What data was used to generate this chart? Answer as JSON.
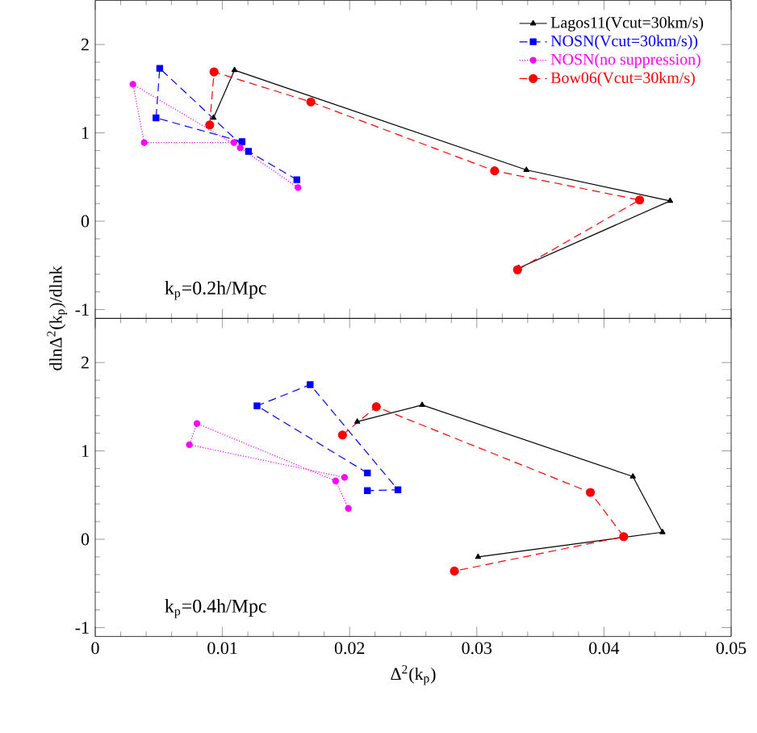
{
  "chart_data": [
    {
      "type": "line",
      "ylabel": "dlnΔ$^{2}$(k$_{p}$)/dlnk",
      "annotations": [
        "k$_{p}$=0.2h/Mpc"
      ],
      "xlim": [
        0,
        0.05
      ],
      "xticks": [
        0,
        0.01,
        0.02,
        0.03,
        0.04,
        0.05
      ],
      "ylim": [
        -1.1,
        2.5
      ],
      "yticks": [
        -1,
        0,
        1,
        2
      ],
      "tick_labels": "y",
      "legend": "top right",
      "series": [
        {
          "name": "Lagos11(Vcut=30km/s)",
          "color": "#000000",
          "marker": "triangle",
          "line_style": "solid",
          "x": [
            0.0093,
            0.01095,
            0.0339,
            0.0452,
            0.0333
          ],
          "values": [
            1.17,
            1.71,
            0.58,
            0.23,
            -0.53
          ]
        },
        {
          "name": "NOSN(Vcut=30km/s))",
          "color": "#0000ff",
          "marker": "square",
          "line_style": "dashed",
          "x": [
            0.01154,
            0.00478,
            0.00507,
            0.01205,
            0.01585
          ],
          "values": [
            0.9,
            1.17,
            1.73,
            0.79,
            0.47
          ]
        },
        {
          "name": "NOSN(no suppression)",
          "color": "#ff00ff",
          "marker": "circle",
          "line_style": "dotted",
          "x": [
            0.0109,
            0.00385,
            0.00296,
            0.0114,
            0.01594
          ],
          "values": [
            0.89,
            0.89,
            1.55,
            0.83,
            0.38
          ]
        },
        {
          "name": "Bow06(Vcut=30km/s)",
          "color": "#ff0000",
          "marker": "circle",
          "line_style": "dashed",
          "x": [
            0.009,
            0.00934,
            0.01695,
            0.0314,
            0.0428,
            0.0332
          ],
          "values": [
            1.09,
            1.69,
            1.35,
            0.57,
            0.24,
            -0.55
          ]
        }
      ]
    },
    {
      "type": "line",
      "xlabel": "Δ$^{2}$(k$_{p}$)",
      "annotations": [
        "k$_{p}$=0.4h/Mpc"
      ],
      "xlim": [
        0,
        0.05
      ],
      "xticks": [
        0,
        0.01,
        0.02,
        0.03,
        0.04,
        0.05
      ],
      "ylim": [
        -1.1,
        2.5
      ],
      "yticks": [
        -1,
        0,
        1,
        2
      ],
      "series": [
        {
          "color": "#000000",
          "marker": "triangle",
          "line_style": "solid",
          "x": [
            0.0206,
            0.0257,
            0.04227,
            0.0446,
            0.0301
          ],
          "values": [
            1.33,
            1.52,
            0.71,
            0.08,
            -0.2
          ]
        },
        {
          "color": "#0000ff",
          "marker": "square",
          "line_style": "dashed",
          "x": [
            0.0214,
            0.01272,
            0.0169,
            0.0238,
            0.0214
          ],
          "values": [
            0.75,
            1.51,
            1.75,
            0.56,
            0.55
          ]
        },
        {
          "color": "#ff00ff",
          "marker": "circle",
          "line_style": "dotted",
          "x": [
            0.0196,
            0.0074,
            0.008,
            0.0189,
            0.0199
          ],
          "values": [
            0.7,
            1.07,
            1.31,
            0.66,
            0.35
          ]
        },
        {
          "color": "#ff0000",
          "marker": "circle",
          "line_style": "dashed",
          "x": [
            0.01944,
            0.0221,
            0.03893,
            0.04155,
            0.02824
          ],
          "values": [
            1.18,
            1.5,
            0.53,
            0.03,
            -0.36
          ]
        }
      ]
    }
  ]
}
